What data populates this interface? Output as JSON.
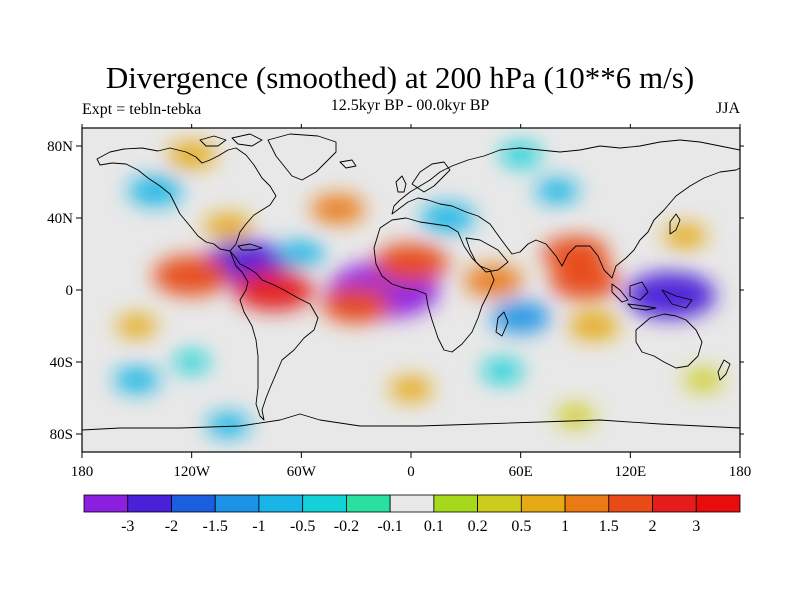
{
  "figure": {
    "title": "Divergence (smoothed) at 200 hPa (10**6 m/s)",
    "left_string": "Expt = tebln-tebka",
    "center_string": "12.5kyr BP - 00.0kyr BP",
    "right_string": "JJA"
  },
  "map": {
    "projection": "cylindrical equidistant",
    "lon_range": [
      -180,
      180
    ],
    "lat_range": [
      -90,
      90
    ],
    "x_ticks": [
      {
        "value": -180,
        "label": "180"
      },
      {
        "value": -120,
        "label": "120W"
      },
      {
        "value": -60,
        "label": "60W"
      },
      {
        "value": 0,
        "label": "0"
      },
      {
        "value": 60,
        "label": "60E"
      },
      {
        "value": 120,
        "label": "120E"
      },
      {
        "value": 180,
        "label": "180"
      }
    ],
    "y_ticks": [
      {
        "value": 80,
        "label": "80N"
      },
      {
        "value": 40,
        "label": "40N"
      },
      {
        "value": 0,
        "label": "0"
      },
      {
        "value": -40,
        "label": "40S"
      },
      {
        "value": -80,
        "label": "80S"
      }
    ],
    "background_color": "#e8e8e8",
    "coastline_color": "#000000"
  },
  "colorbar": {
    "labels": [
      "-3",
      "-2",
      "-1.5",
      "-1",
      "-0.5",
      "-0.2",
      "-0.1",
      "0.1",
      "0.2",
      "0.5",
      "1",
      "1.5",
      "2",
      "3"
    ],
    "colors": [
      "#8c20e0",
      "#4a20d8",
      "#1c5ee0",
      "#1c93e6",
      "#18b5e6",
      "#12d1d8",
      "#2ae0a0",
      "#e8e8e8",
      "#a6d81c",
      "#cccc1c",
      "#e6aa14",
      "#ea7a14",
      "#e84a18",
      "#e41c1c",
      "#e80c0c"
    ]
  },
  "chart_data": {
    "type": "heatmap",
    "title": "Divergence (smoothed) at 200 hPa (10**6 m/s)",
    "units": "10**6 m/s",
    "contour_levels": [
      -3,
      -2,
      -1.5,
      -1,
      -0.5,
      -0.2,
      -0.1,
      0.1,
      0.2,
      0.5,
      1,
      1.5,
      2,
      3
    ],
    "features": [
      {
        "lon": -15,
        "lat": 0,
        "value": -3.2
      },
      {
        "lon": -90,
        "lat": 15,
        "value": -2.2
      },
      {
        "lon": 142,
        "lat": -3,
        "value": -2.4
      },
      {
        "lon": 60,
        "lat": -15,
        "value": -1.2
      },
      {
        "lon": 20,
        "lat": 40,
        "value": -1.0
      },
      {
        "lon": -140,
        "lat": 55,
        "value": -1.0
      },
      {
        "lon": -60,
        "lat": 20,
        "value": -0.7
      },
      {
        "lon": 80,
        "lat": 55,
        "value": -0.6
      },
      {
        "lon": -120,
        "lat": 8,
        "value": 1.9
      },
      {
        "lon": -75,
        "lat": 0,
        "value": 2.0
      },
      {
        "lon": 0,
        "lat": 15,
        "value": 1.8
      },
      {
        "lon": -30,
        "lat": -8,
        "value": 1.6
      },
      {
        "lon": 95,
        "lat": 5,
        "value": 1.6
      },
      {
        "lon": 45,
        "lat": 5,
        "value": 1.2
      },
      {
        "lon": 90,
        "lat": 20,
        "value": 1.5
      },
      {
        "lon": 100,
        "lat": -20,
        "value": 0.9
      },
      {
        "lon": -40,
        "lat": 45,
        "value": 1.0
      },
      {
        "lon": 0,
        "lat": -55,
        "value": 0.6
      },
      {
        "lon": -100,
        "lat": 35,
        "value": 0.8
      },
      {
        "lon": 150,
        "lat": 30,
        "value": 0.6
      },
      {
        "lon": -150,
        "lat": -20,
        "value": 0.5
      },
      {
        "lon": 160,
        "lat": -50,
        "value": 0.4
      },
      {
        "lon": -150,
        "lat": -50,
        "value": -0.7
      },
      {
        "lon": 50,
        "lat": -45,
        "value": -0.5
      },
      {
        "lon": -120,
        "lat": -40,
        "value": -0.3
      },
      {
        "lon": -120,
        "lat": 75,
        "value": 0.8
      },
      {
        "lon": 60,
        "lat": 75,
        "value": -0.5
      },
      {
        "lon": -100,
        "lat": -75,
        "value": -0.6
      },
      {
        "lon": 90,
        "lat": -70,
        "value": 0.4
      }
    ]
  }
}
